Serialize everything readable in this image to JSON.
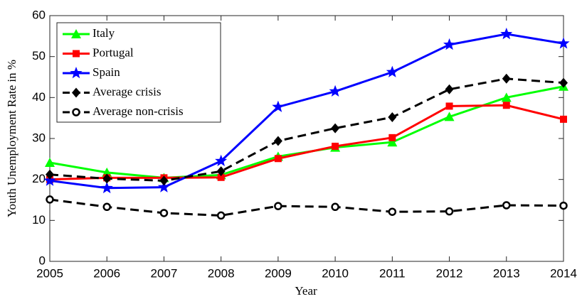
{
  "chart_data": {
    "type": "line",
    "ylabel": "Youth Unemployment Rate in %",
    "xlabel": "Year",
    "x": [
      2005,
      2006,
      2007,
      2008,
      2009,
      2010,
      2011,
      2012,
      2013,
      2014
    ],
    "xlim": [
      2005,
      2014
    ],
    "xticks": [
      2005,
      2006,
      2007,
      2008,
      2009,
      2010,
      2011,
      2012,
      2013,
      2014
    ],
    "ylim": [
      0,
      60
    ],
    "yticks": [
      0,
      10,
      20,
      30,
      40,
      50,
      60
    ],
    "legend": "upper left",
    "series": [
      {
        "name": "Italy",
        "color": "#00ff00",
        "marker": "triangle",
        "dash": false,
        "values": [
          24.1,
          21.7,
          20.4,
          21.1,
          25.6,
          27.8,
          29.1,
          35.3,
          40.0,
          42.7
        ]
      },
      {
        "name": "Portugal",
        "color": "#ff0000",
        "marker": "square",
        "dash": false,
        "values": [
          20.0,
          20.4,
          20.4,
          20.5,
          25.1,
          28.1,
          30.2,
          37.9,
          38.1,
          34.7
        ]
      },
      {
        "name": "Spain",
        "color": "#0000ff",
        "marker": "star",
        "dash": false,
        "values": [
          19.7,
          17.9,
          18.1,
          24.5,
          37.7,
          41.5,
          46.2,
          52.9,
          55.5,
          53.2
        ]
      },
      {
        "name": "Average crisis",
        "color": "#000000",
        "marker": "diamond",
        "dash": true,
        "values": [
          21.2,
          20.2,
          19.7,
          22.0,
          29.4,
          32.5,
          35.2,
          42.0,
          44.6,
          43.6
        ]
      },
      {
        "name": "Average non-crisis",
        "color": "#000000",
        "marker": "circle",
        "dash": true,
        "values": [
          15.1,
          13.3,
          11.8,
          11.2,
          13.5,
          13.3,
          12.1,
          12.2,
          13.7,
          13.6
        ]
      }
    ]
  }
}
